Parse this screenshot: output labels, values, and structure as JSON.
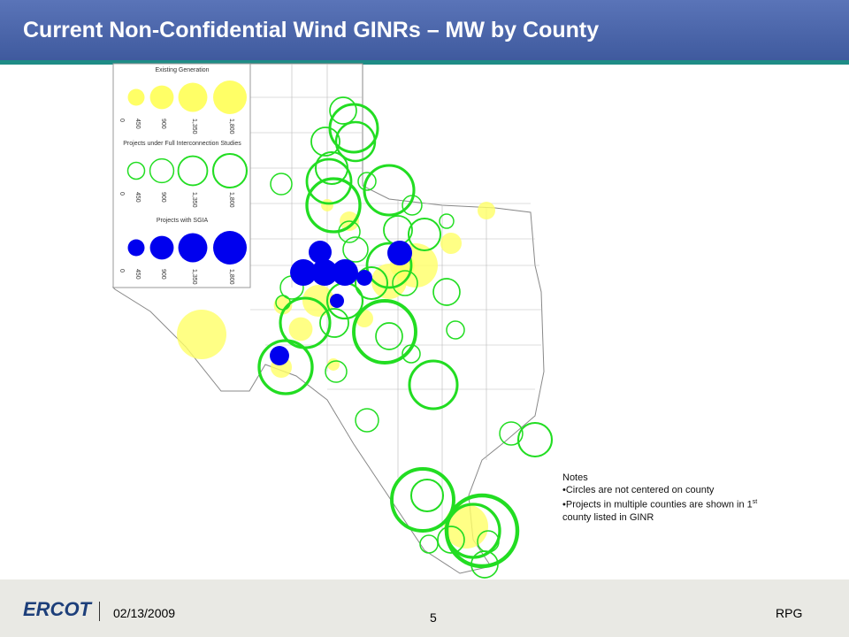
{
  "header": {
    "title": "Current Non-Confidential Wind GINRs – MW by County"
  },
  "legend": {
    "groups": [
      {
        "title": "Existing Generation",
        "color": "#ffff66",
        "style": "filled",
        "sizes": [
          0,
          450,
          900,
          {
            "value": 1350,
            "label": "1,350"
          },
          {
            "value": 1800,
            "label": "1,800"
          }
        ]
      },
      {
        "title": "Projects under Full Interconnection Studies",
        "color": "#22dd22",
        "style": "ring",
        "sizes": [
          0,
          450,
          900,
          {
            "value": 1350,
            "label": "1,350"
          },
          {
            "value": 1800,
            "label": "1,800"
          }
        ]
      },
      {
        "title": "Projects with SGIA",
        "color": "#0000ee",
        "style": "filled",
        "sizes": [
          0,
          450,
          900,
          {
            "value": 1350,
            "label": "1,350"
          },
          {
            "value": 1800,
            "label": "1,800"
          }
        ]
      }
    ]
  },
  "map": {
    "groups": [
      {
        "mw": [
          500,
          720,
          600,
          240,
          540,
          900,
          1620,
          2000,
          3910,
          240,
          720,
          3120,
          3120,
          500,
          980
        ]
      },
      {
        "mw": [
          3640,
          1120,
          2410,
          3120,
          1620,
          1280,
          720,
          3910,
          500,
          4490,
          720,
          980,
          600,
          1620,
          320,
          1280,
          3120,
          2000,
          1620,
          980,
          1120,
          3910,
          1280,
          6110,
          1120,
          500,
          500,
          4490,
          720,
          3640,
          840,
          840,
          1800,
          6110,
          1620,
          7980,
          4490,
          500,
          1120,
          1120,
          720,
          840,
          320
        ]
      },
      {
        "mw": [
          840,
          1120,
          1120,
          1120,
          400,
          980,
          320,
          600
        ]
      }
    ]
  },
  "notes": {
    "title": "Notes",
    "items": [
      "•Circles are not centered on county",
      "•Projects in multiple counties are shown in 1",
      "st",
      "county listed in GINR"
    ]
  },
  "footer": {
    "logo": "ERCOT",
    "date": "02/13/2009",
    "page": "5",
    "dept": "RPG"
  }
}
